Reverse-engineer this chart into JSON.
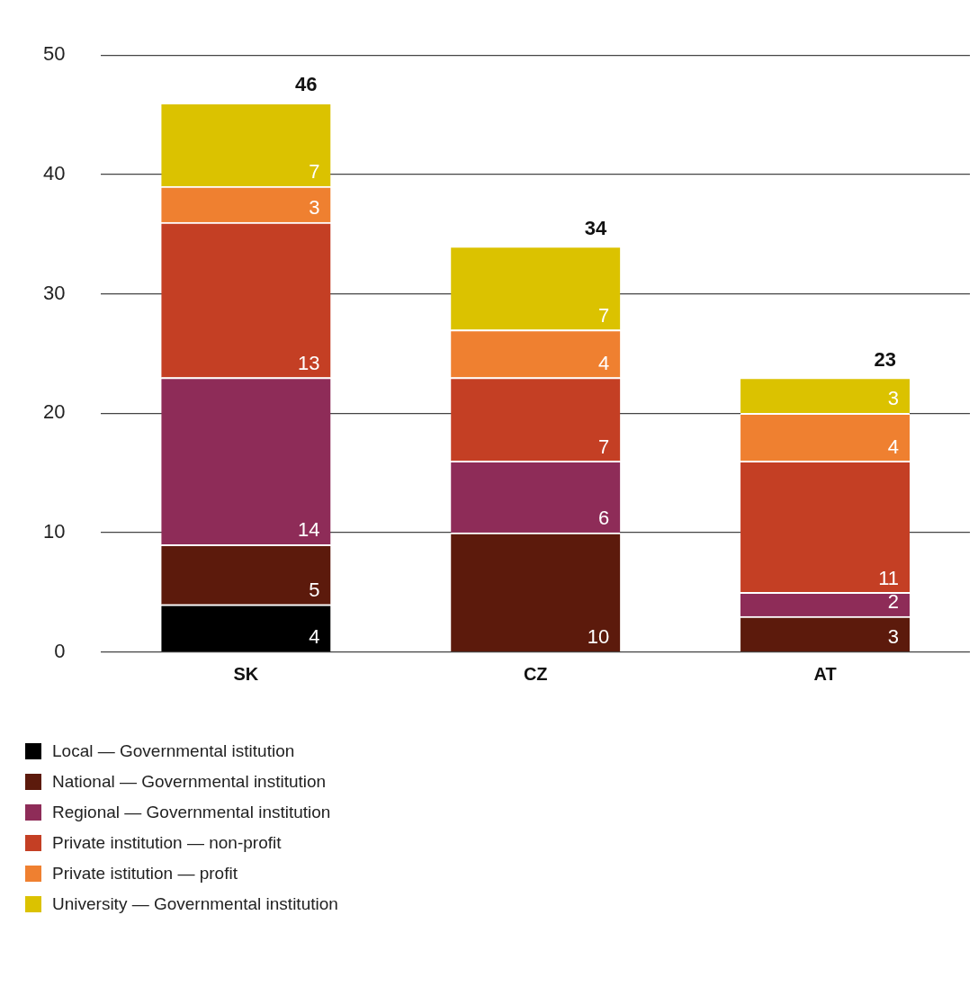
{
  "chart_data": {
    "type": "bar",
    "stacked": true,
    "categories": [
      "SK",
      "CZ",
      "AT"
    ],
    "series": [
      {
        "name": "Local — Governmental istitution",
        "color": "#000000",
        "values": [
          4,
          null,
          null
        ]
      },
      {
        "name": "National — Governmental institution",
        "color": "#5c1a0c",
        "values": [
          5,
          10,
          3
        ]
      },
      {
        "name": "Regional — Governmental institution",
        "color": "#8e2c58",
        "values": [
          14,
          6,
          2
        ]
      },
      {
        "name": "Private institution — non-profit",
        "color": "#c43f24",
        "values": [
          13,
          7,
          11
        ]
      },
      {
        "name": "Private istitution — profit",
        "color": "#ef8030",
        "values": [
          3,
          4,
          4
        ]
      },
      {
        "name": "University — Governmental institution",
        "color": "#dbc200",
        "values": [
          7,
          7,
          3
        ]
      }
    ],
    "totals": [
      "46",
      "34",
      "23"
    ],
    "data_labels": true,
    "ylim": [
      0,
      50
    ],
    "yticks": [
      0,
      10,
      20,
      30,
      40,
      50
    ],
    "grid": "y",
    "legend": "bottom"
  }
}
